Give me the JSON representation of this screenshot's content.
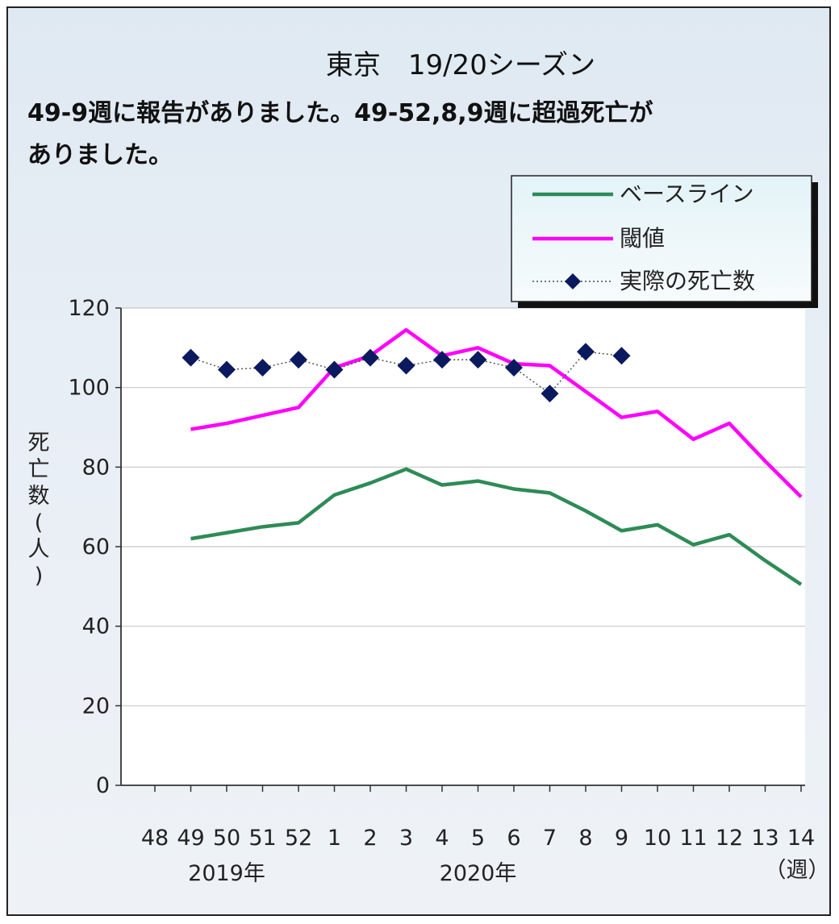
{
  "chart_data": {
    "type": "line",
    "title": "東京　19/20シーズン",
    "subtitle_lines": [
      "49-9週に報告がありました。49-52,8,9週に超過死亡が",
      "ありました。"
    ],
    "ylabel": "死亡数(人)",
    "xlabel_unit": "（週）",
    "year_labels": [
      {
        "label": "2019年",
        "at_category": "50"
      },
      {
        "label": "2020年",
        "at_category": "5"
      }
    ],
    "ylim": [
      0,
      120
    ],
    "yticks": [
      0,
      20,
      40,
      60,
      80,
      100,
      120
    ],
    "grid": true,
    "legend_position": "top-right",
    "categories": [
      "48",
      "49",
      "50",
      "51",
      "52",
      "1",
      "2",
      "3",
      "4",
      "5",
      "6",
      "7",
      "8",
      "9",
      "10",
      "11",
      "12",
      "13",
      "14"
    ],
    "series": [
      {
        "name": "ベースライン",
        "style": "line",
        "color": "#2e8b57",
        "values": [
          null,
          62,
          63.5,
          65,
          66,
          73,
          76,
          79.5,
          75.5,
          76.5,
          74.5,
          73.5,
          69,
          64,
          65.5,
          60.5,
          63,
          56.5,
          50.5
        ]
      },
      {
        "name": "閾値",
        "style": "line",
        "color": "#ff00ff",
        "values": [
          null,
          89.5,
          91,
          93,
          95,
          105,
          108,
          114.5,
          108,
          110,
          106,
          105.5,
          99,
          92.5,
          94,
          87,
          91,
          81.5,
          72.5
        ]
      },
      {
        "name": "実際の死亡数",
        "style": "dotted-markers",
        "color": "#0b1a5e",
        "values": [
          null,
          107.5,
          104.5,
          105,
          107,
          104.5,
          107.5,
          105.5,
          107,
          107,
          105,
          98.5,
          109,
          108,
          null,
          null,
          null,
          null,
          null
        ]
      }
    ]
  }
}
